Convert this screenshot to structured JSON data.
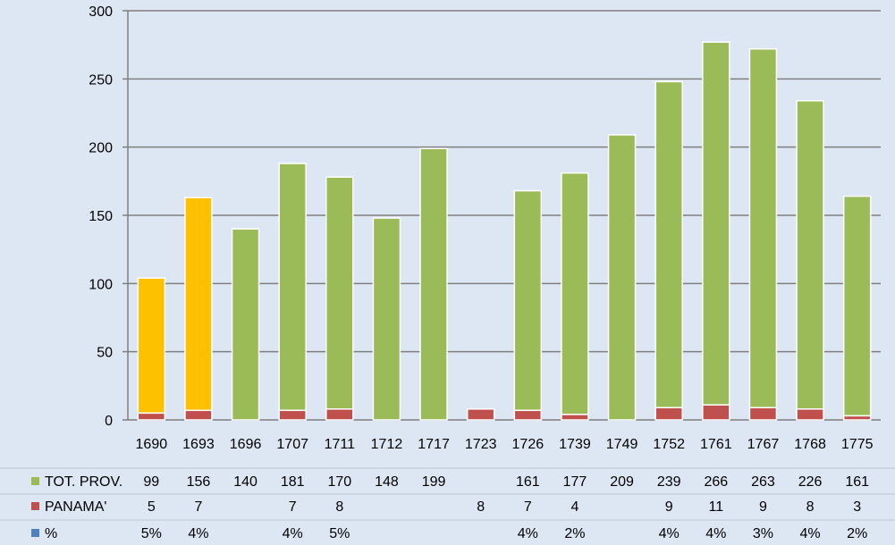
{
  "chart_data": {
    "type": "bar",
    "categories": [
      "1690",
      "1693",
      "1696",
      "1707",
      "1711",
      "1712",
      "1717",
      "1723",
      "1726",
      "1739",
      "1749",
      "1752",
      "1761",
      "1767",
      "1768",
      "1775"
    ],
    "ylim": [
      0,
      300
    ],
    "yticks": [
      0,
      50,
      100,
      150,
      200,
      250,
      300
    ],
    "grid": true,
    "bar_stack": {
      "panama": [
        5,
        7,
        0,
        7,
        8,
        0,
        0,
        8,
        7,
        4,
        0,
        9,
        11,
        9,
        8,
        3
      ],
      "total_height": [
        104,
        163,
        140,
        188,
        178,
        148,
        199,
        8,
        168,
        181,
        209,
        248,
        277,
        272,
        234,
        164
      ],
      "highlight_years": [
        "1690",
        "1693"
      ]
    },
    "colors": {
      "tot_prov": "#9bbb59",
      "tot_prov_highlight": "#ffc000",
      "panama": "#c0504d",
      "pct": "#4f81bd",
      "grid": "#7f7f7f",
      "background": "#dde6f3"
    },
    "table": {
      "rows": [
        {
          "name": "TOT. PROV.",
          "color": "#9bbb59",
          "values": [
            "99",
            "156",
            "140",
            "181",
            "170",
            "148",
            "199",
            "",
            "161",
            "177",
            "209",
            "239",
            "266",
            "263",
            "226",
            "161"
          ]
        },
        {
          "name": "PANAMA'",
          "color": "#c0504d",
          "values": [
            "5",
            "7",
            "",
            "7",
            "8",
            "",
            "",
            "8",
            "7",
            "4",
            "",
            "9",
            "11",
            "9",
            "8",
            "3"
          ]
        },
        {
          "name": "%",
          "color": "#4f81bd",
          "values": [
            "5%",
            "4%",
            "",
            "4%",
            "5%",
            "",
            "",
            "",
            "4%",
            "2%",
            "",
            "4%",
            "4%",
            "3%",
            "4%",
            "2%"
          ]
        }
      ]
    }
  }
}
